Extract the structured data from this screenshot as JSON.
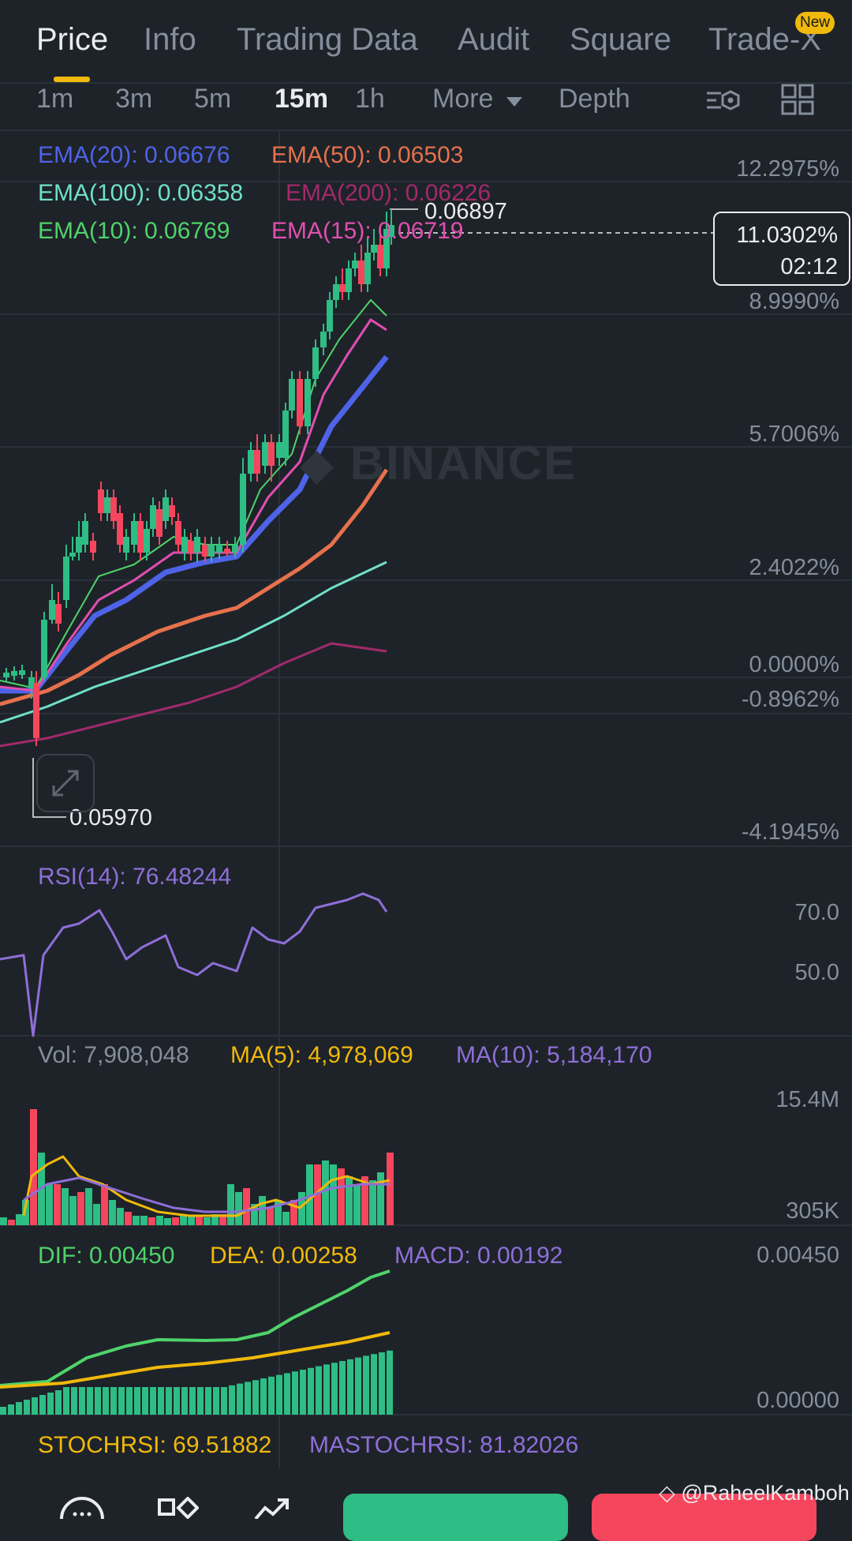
{
  "tabs": [
    {
      "label": "Price",
      "active": true
    },
    {
      "label": "Info"
    },
    {
      "label": "Trading Data"
    },
    {
      "label": "Audit"
    },
    {
      "label": "Square"
    },
    {
      "label": "Trade-X"
    }
  ],
  "new_badge": "New",
  "intervals": [
    "1m",
    "3m",
    "5m",
    "15m",
    "1h",
    "More",
    "Depth"
  ],
  "active_interval": "15m",
  "ema": {
    "ema20": "EMA(20): 0.06676",
    "ema50": "EMA(50): 0.06503",
    "ema100": "EMA(100): 0.06358",
    "ema200": "EMA(200): 0.06226",
    "ema10": "EMA(10): 0.06769",
    "ema15": "EMA(15): 0.06719"
  },
  "price_axis": [
    "12.2975%",
    "8.9990%",
    "5.7006%",
    "2.4022%",
    "0.0000%",
    "-0.8962%",
    "-4.1945%"
  ],
  "current_price_box": {
    "percent": "11.0302%",
    "countdown": "02:12"
  },
  "high_label": "0.06897",
  "low_label": "0.05970",
  "watermark": "BINANCE",
  "rsi": {
    "label": "RSI(14): 76.48244",
    "axis": [
      "70.0",
      "50.0"
    ]
  },
  "volume": {
    "vol": "Vol: 7,908,048",
    "ma5": "MA(5): 4,978,069",
    "ma10": "MA(10): 5,184,170",
    "axis": [
      "15.4M",
      "305K"
    ]
  },
  "macd": {
    "dif": "DIF: 0.00450",
    "dea": "DEA: 0.00258",
    "macd": "MACD: 0.00192",
    "axis": [
      "0.00450",
      "0.00000"
    ]
  },
  "stochrsi": {
    "stoch": "STOCHRSI: 69.51882",
    "ma": "MASTOCHRSI: 81.82026"
  },
  "watermark_credit": "@RaheelKamboh",
  "colors": {
    "ema10": "#4fd36a",
    "ema15": "#e04fb0",
    "ema20": "#4e63e8",
    "ema50": "#e6714c",
    "ema100": "#6fe0c8",
    "ema200": "#a12a6a",
    "up": "#2ebd85",
    "down": "#f6465d",
    "rsi": "#8e6fd8",
    "ma5": "#f0b90b",
    "ma10": "#8e6fd8"
  },
  "chart_data": {
    "type": "candlestick",
    "interval": "15m",
    "high": 0.06897,
    "low": 0.0597
  }
}
